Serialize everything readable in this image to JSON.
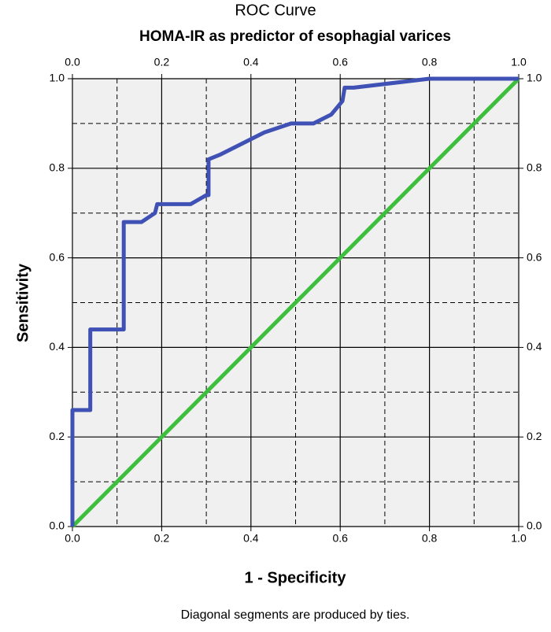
{
  "chart_data": {
    "type": "line",
    "title": "ROC Curve",
    "subtitle": "HOMA-IR as predictor of esophagial varices",
    "xlabel": "1 - Specificity",
    "ylabel": "Sensitivity",
    "footnote": "Diagonal segments are produced by ties.",
    "xlim": [
      0,
      1
    ],
    "ylim": [
      0,
      1
    ],
    "xticks": [
      {
        "value": 0,
        "label": "0.0"
      },
      {
        "value": 0.2,
        "label": "0.2"
      },
      {
        "value": 0.4,
        "label": "0.4"
      },
      {
        "value": 0.6,
        "label": "0.6"
      },
      {
        "value": 0.8,
        "label": "0.8"
      },
      {
        "value": 1,
        "label": "1.0"
      }
    ],
    "yticks": [
      {
        "value": 0,
        "label": "0.0"
      },
      {
        "value": 0.2,
        "label": "0.2"
      },
      {
        "value": 0.4,
        "label": "0.4"
      },
      {
        "value": 0.6,
        "label": "0.6"
      },
      {
        "value": 0.8,
        "label": "0.8"
      },
      {
        "value": 1,
        "label": "1.0"
      }
    ],
    "minor_xticks": [
      0.1,
      0.3,
      0.5,
      0.7,
      0.9
    ],
    "minor_yticks": [
      0.1,
      0.3,
      0.5,
      0.7,
      0.9
    ],
    "grid": true,
    "series": [
      {
        "color": "#3f51b5",
        "x": [
          0,
          0,
          0.04,
          0.04,
          0.115,
          0.115,
          0.155,
          0.185,
          0.19,
          0.265,
          0.3,
          0.305,
          0.305,
          0.33,
          0.37,
          0.43,
          0.49,
          0.54,
          0.58,
          0.605,
          0.61,
          0.63,
          0.8,
          1.0
        ],
        "values": [
          0,
          0.26,
          0.26,
          0.44,
          0.44,
          0.68,
          0.68,
          0.7,
          0.72,
          0.72,
          0.74,
          0.74,
          0.82,
          0.83,
          0.85,
          0.88,
          0.9,
          0.9,
          0.92,
          0.95,
          0.98,
          0.98,
          1.0,
          1.0
        ]
      },
      {
        "color": "#3dbf3d",
        "x": [
          0,
          1
        ],
        "values": [
          0,
          1
        ]
      }
    ]
  }
}
